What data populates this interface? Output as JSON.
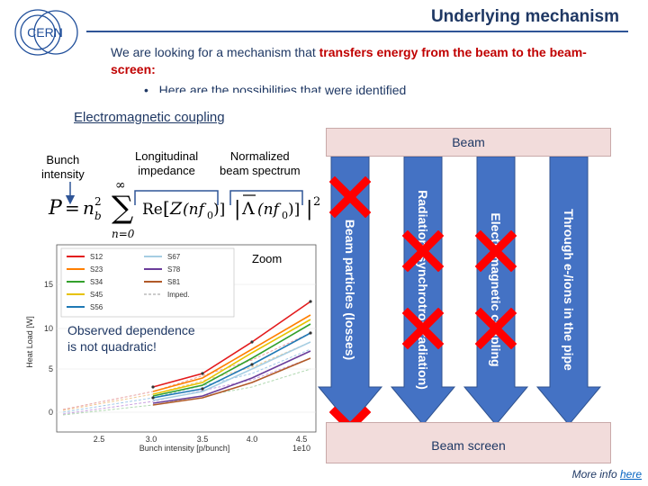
{
  "header": {
    "title": "Underlying mechanism",
    "intro_before": "We are looking for a mechanism that ",
    "intro_highlight": "transfers energy from the beam to the beam-screen:",
    "bullet": "Here are the possibilities that were identified"
  },
  "logo": {
    "text": "CERN"
  },
  "em_panel": {
    "title": "Electromagnetic coupling",
    "bunch_intensity": [
      "Bunch",
      "intensity"
    ],
    "longitudinal_impedance": [
      "Longitudinal",
      "impedance"
    ],
    "normalized_spectrum": [
      "Normalized",
      "beam spectrum"
    ],
    "zoom": "Zoom",
    "observed": [
      "Observed dependence",
      "is not quadratic!"
    ]
  },
  "formula": {
    "P": "P",
    "eq": "=",
    "n": "n",
    "b": "b",
    "two": "2",
    "sum": "∑",
    "inf": "∞",
    "lower": "n=0",
    "Re": "Re",
    "bracket_open": "[",
    "Z": "Z",
    "nf0": "(nf",
    "zero": "0",
    "close": ")]",
    "bar_open": "|",
    "Lambda": "Λ",
    "bar_close": "|",
    "sq": "2"
  },
  "plot": {
    "ylabel": "Heat Load [W]",
    "xlabel": "Bunch intensity [p/bunch]",
    "xscale": "1e10",
    "yticks": [
      "15",
      "10",
      "5",
      "0"
    ],
    "xticks": [
      "2.5",
      "3.0",
      "3.5",
      "4.0",
      "4.5"
    ],
    "legend": [
      "S12",
      "S23",
      "S34",
      "S45",
      "S56",
      "S67",
      "S78",
      "S81",
      "Imped."
    ]
  },
  "right_panel": {
    "beam": "Beam",
    "screen": "Beam screen",
    "arrows": [
      "Beam particles (losses)",
      "Radiation (synchrotron radiation)",
      "Electromagnetic coupling",
      "Through e-/ions in the pipe"
    ]
  },
  "footer": {
    "more": "More info",
    "link": "here"
  },
  "colors": {
    "arrow": "#4472c4",
    "cross": "#ff0000",
    "beam_box": "#f2dcdb",
    "title": "#1f3864"
  }
}
